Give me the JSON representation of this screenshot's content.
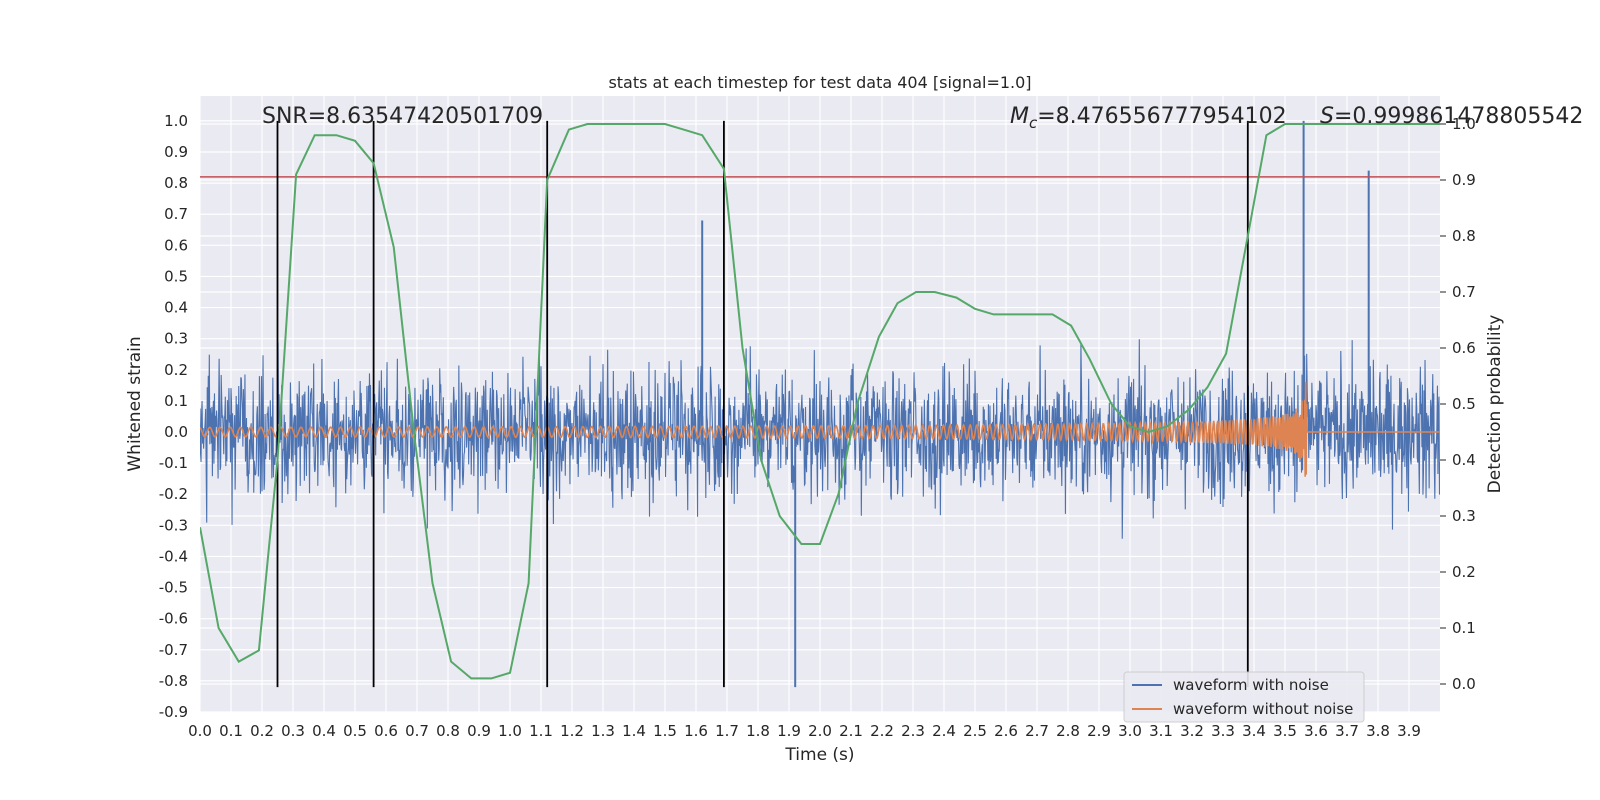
{
  "chart_data": {
    "type": "line",
    "title": "stats at each timestep for test data 404 [signal=1.0]",
    "xlabel": "Time (s)",
    "ylabel": "Whitened strain",
    "y2label": "Detection probability",
    "xlim": [
      0.0,
      4.0
    ],
    "ylim": [
      -0.9,
      1.08
    ],
    "y2lim": [
      -0.05,
      1.05
    ],
    "x_ticks": [
      0.0,
      0.1,
      0.2,
      0.3,
      0.4,
      0.5,
      0.6,
      0.7,
      0.8,
      0.9,
      1.0,
      1.1,
      1.2,
      1.3,
      1.4,
      1.5,
      1.6,
      1.7,
      1.8,
      1.9,
      2.0,
      2.1,
      2.2,
      2.3,
      2.4,
      2.5,
      2.6,
      2.7,
      2.8,
      2.9,
      3.0,
      3.1,
      3.2,
      3.3,
      3.4,
      3.5,
      3.6,
      3.7,
      3.8,
      3.9
    ],
    "y_ticks": [
      1.0,
      0.9,
      0.8,
      0.7,
      0.6,
      0.5,
      0.4,
      0.3,
      0.2,
      0.1,
      0.0,
      -0.1,
      -0.2,
      -0.3,
      -0.4,
      -0.5,
      -0.6,
      -0.7,
      -0.8,
      -0.9
    ],
    "y2_ticks": [
      1.0,
      0.9,
      0.8,
      0.7,
      0.6,
      0.5,
      0.4,
      0.3,
      0.2,
      0.1,
      0.0
    ],
    "grid": true,
    "legend": {
      "placement": "lower-right",
      "entries": [
        "waveform with noise",
        "waveform without noise"
      ]
    },
    "annotations": {
      "snr": "SNR=8.63547420501709",
      "mc_symbol": "M",
      "mc_sub": "c",
      "mc_value": "=8.476556777954102",
      "s_symbol": "S",
      "s_value": "=0.999861478805542"
    },
    "threshold_y": 0.82,
    "vertical_lines_x": [
      0.25,
      0.56,
      1.12,
      1.69,
      3.38
    ],
    "vertical_lines_range": [
      -0.82,
      1.0
    ],
    "noise_envelope": {
      "max_abs": 0.8,
      "spikes": [
        [
          3.56,
          1.0
        ],
        [
          3.77,
          0.84
        ],
        [
          1.92,
          -0.82
        ],
        [
          1.62,
          0.68
        ]
      ]
    },
    "chirp": {
      "start_x": 0.0,
      "merger_x": 3.57,
      "start_amp": 0.015,
      "peak_amp": 0.28,
      "start_freq_hz": 30,
      "end_freq_hz": 260
    },
    "series": [
      {
        "name": "waveform with noise",
        "color": "#4c72b0",
        "axis": "left"
      },
      {
        "name": "waveform without noise",
        "color": "#dd8452",
        "axis": "left"
      },
      {
        "name": "Detection probability",
        "color": "#55a868",
        "axis": "right",
        "x": [
          0.0,
          0.06,
          0.125,
          0.19,
          0.25,
          0.31,
          0.37,
          0.44,
          0.5,
          0.56,
          0.625,
          0.69,
          0.75,
          0.81,
          0.875,
          0.94,
          1.0,
          1.06,
          1.12,
          1.19,
          1.25,
          1.31,
          1.37,
          1.44,
          1.5,
          1.56,
          1.62,
          1.69,
          1.75,
          1.81,
          1.87,
          1.94,
          2.0,
          2.06,
          2.12,
          2.19,
          2.25,
          2.31,
          2.37,
          2.44,
          2.5,
          2.56,
          2.62,
          2.69,
          2.75,
          2.81,
          2.87,
          2.94,
          3.0,
          3.06,
          3.12,
          3.19,
          3.25,
          3.31,
          3.38,
          3.44,
          3.5,
          3.56,
          3.62,
          3.69,
          3.75,
          3.81,
          3.87,
          3.94,
          4.0
        ],
        "values": [
          0.28,
          0.1,
          0.04,
          0.06,
          0.4,
          0.91,
          0.98,
          0.98,
          0.97,
          0.93,
          0.78,
          0.45,
          0.18,
          0.04,
          0.01,
          0.01,
          0.02,
          0.18,
          0.9,
          0.99,
          1.0,
          1.0,
          1.0,
          1.0,
          1.0,
          0.99,
          0.98,
          0.92,
          0.6,
          0.4,
          0.3,
          0.25,
          0.25,
          0.34,
          0.5,
          0.62,
          0.68,
          0.7,
          0.7,
          0.69,
          0.67,
          0.66,
          0.66,
          0.66,
          0.66,
          0.64,
          0.58,
          0.5,
          0.46,
          0.45,
          0.46,
          0.49,
          0.53,
          0.59,
          0.8,
          0.98,
          1.0,
          1.0,
          1.0,
          1.0,
          1.0,
          1.0,
          1.0,
          1.0,
          1.0
        ]
      }
    ]
  }
}
